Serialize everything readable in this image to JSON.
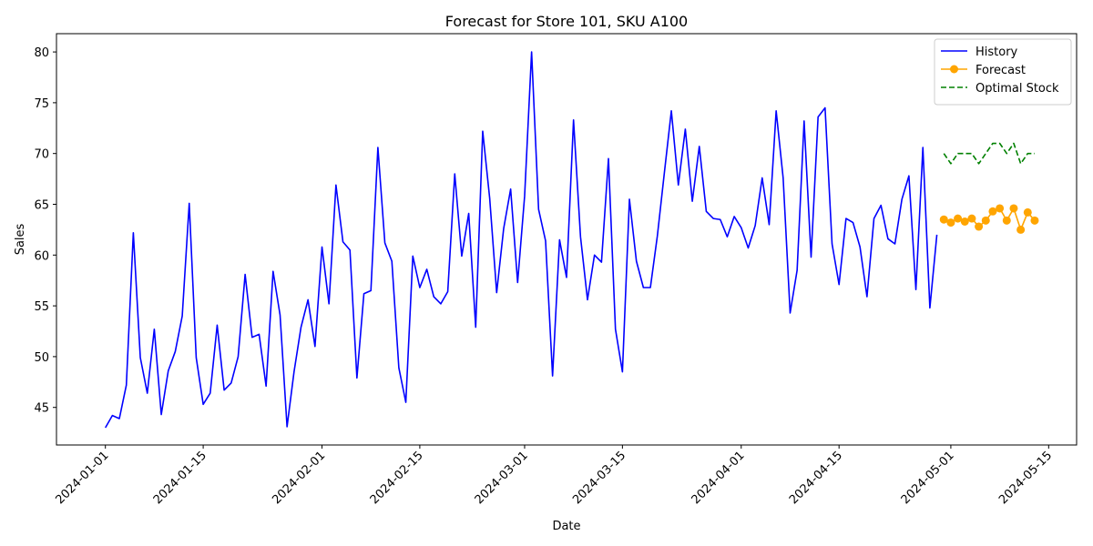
{
  "chart_data": {
    "type": "line",
    "title": "Forecast for Store 101, SKU A100",
    "xlabel": "Date",
    "ylabel": "Sales",
    "x_axis_type": "date",
    "xlim": [
      "2023-12-25",
      "2024-05-19"
    ],
    "ylim": [
      41.3,
      81.8
    ],
    "x_ticks": [
      "2024-01-01",
      "2024-01-15",
      "2024-02-01",
      "2024-02-15",
      "2024-03-01",
      "2024-03-15",
      "2024-04-01",
      "2024-04-15",
      "2024-05-01",
      "2024-05-15"
    ],
    "y_ticks": [
      45,
      50,
      55,
      60,
      65,
      70,
      75,
      80
    ],
    "grid": false,
    "legend_position": "top-right",
    "series": [
      {
        "name": "History",
        "color": "#0000ff",
        "line_style": "solid",
        "marker": "none",
        "x_start": "2024-01-01",
        "x_end": "2024-04-30",
        "values": [
          43.0,
          44.2,
          43.9,
          47.2,
          62.2,
          49.9,
          46.4,
          52.7,
          44.3,
          48.6,
          50.5,
          54.0,
          65.1,
          49.9,
          45.3,
          46.4,
          53.1,
          46.7,
          47.4,
          50.0,
          58.1,
          51.9,
          52.2,
          47.1,
          58.4,
          54.1,
          43.1,
          48.5,
          52.9,
          55.6,
          51.0,
          60.8,
          55.2,
          66.9,
          61.3,
          60.5,
          47.9,
          56.2,
          56.5,
          70.6,
          61.2,
          59.4,
          48.9,
          45.5,
          59.9,
          56.8,
          58.6,
          55.9,
          55.2,
          56.4,
          68.0,
          59.9,
          64.1,
          52.9,
          72.2,
          65.6,
          56.3,
          62.6,
          66.5,
          57.3,
          65.8,
          80.0,
          64.5,
          61.4,
          48.1,
          61.5,
          57.8,
          73.3,
          61.8,
          55.6,
          60.0,
          59.3,
          69.5,
          52.7,
          48.5,
          65.5,
          59.4,
          56.8,
          56.8,
          61.9,
          68.1,
          74.2,
          66.9,
          72.4,
          65.3,
          70.7,
          64.3,
          63.6,
          63.5,
          61.8,
          63.8,
          62.7,
          60.7,
          62.9,
          67.6,
          63.0,
          74.2,
          67.6,
          54.3,
          58.5,
          73.2,
          59.8,
          73.6,
          74.5,
          61.1,
          57.1,
          63.6,
          63.2,
          60.8,
          55.9,
          63.6,
          64.9,
          61.6,
          61.1,
          65.5,
          67.8,
          56.6,
          70.6,
          54.8,
          62.0
        ]
      },
      {
        "name": "Forecast",
        "color": "#ffa500",
        "line_style": "solid",
        "marker": "circle",
        "x_start": "2024-04-30",
        "x_end": "2024-05-12",
        "values": [
          63.5,
          63.2,
          63.6,
          63.3,
          63.6,
          62.8,
          63.4,
          64.3,
          64.6,
          63.4,
          64.6,
          62.5,
          64.2,
          63.4
        ]
      },
      {
        "name": "Optimal Stock",
        "color": "#008000",
        "line_style": "dashed",
        "marker": "none",
        "x_start": "2024-04-30",
        "x_end": "2024-05-12",
        "values": [
          70,
          69,
          70,
          70,
          70,
          69,
          70,
          71,
          71,
          70,
          71,
          69,
          70,
          70
        ]
      }
    ]
  }
}
